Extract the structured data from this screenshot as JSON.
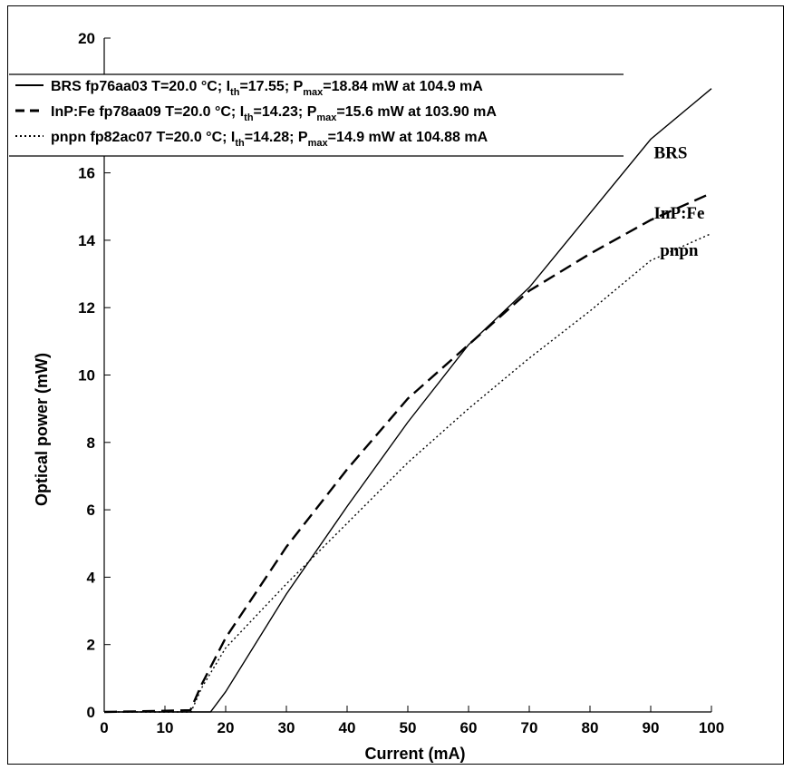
{
  "chart_data": {
    "type": "line",
    "xlabel": "Current (mA)",
    "ylabel": "Optical power (mW)",
    "xlim": [
      0,
      100
    ],
    "ylim": [
      0,
      20
    ],
    "xticks": [
      "0",
      "10",
      "20",
      "30",
      "40",
      "50",
      "60",
      "70",
      "80",
      "90",
      "100"
    ],
    "yticks": [
      "0",
      "2",
      "4",
      "6",
      "8",
      "10",
      "12",
      "14",
      "16",
      "20"
    ],
    "grid": false,
    "legend_position": "top",
    "legend": [
      {
        "pre": "BRS fp76aa03 T=20.0 °C; I",
        "sub1": "th",
        "mid": "=17.55; P",
        "sub2": "max",
        "post": "=18.84 mW at 104.9 mA"
      },
      {
        "pre": "InP:Fe fp78aa09 T=20.0 °C; I",
        "sub1": "th",
        "mid": "=14.23; P",
        "sub2": "max",
        "post": "=15.6 mW at 103.90 mA"
      },
      {
        "pre": "pnpn fp82ac07 T=20.0 °C; I",
        "sub1": "th",
        "mid": "=14.28; P",
        "sub2": "max",
        "post": "=14.9 mW at 104.88 mA"
      }
    ],
    "series": [
      {
        "name": "BRS",
        "style": "solid",
        "points": [
          [
            0,
            0
          ],
          [
            17.5,
            0
          ],
          [
            20,
            0.6
          ],
          [
            30,
            3.5
          ],
          [
            40,
            6.1
          ],
          [
            50,
            8.6
          ],
          [
            60,
            10.9
          ],
          [
            70,
            12.6
          ],
          [
            80,
            14.8
          ],
          [
            90,
            17.0
          ],
          [
            100,
            18.5
          ]
        ]
      },
      {
        "name": "InP:Fe",
        "style": "dashed",
        "points": [
          [
            0,
            0
          ],
          [
            6,
            0.02
          ],
          [
            14.2,
            0.05
          ],
          [
            16,
            0.8
          ],
          [
            20,
            2.2
          ],
          [
            30,
            4.9
          ],
          [
            40,
            7.2
          ],
          [
            50,
            9.3
          ],
          [
            60,
            10.9
          ],
          [
            70,
            12.5
          ],
          [
            80,
            13.6
          ],
          [
            90,
            14.6
          ],
          [
            100,
            15.4
          ]
        ]
      },
      {
        "name": "pnpn",
        "style": "dotted",
        "points": [
          [
            0,
            0
          ],
          [
            14.3,
            0
          ],
          [
            16,
            0.7
          ],
          [
            20,
            1.9
          ],
          [
            30,
            3.8
          ],
          [
            40,
            5.6
          ],
          [
            50,
            7.4
          ],
          [
            60,
            9.0
          ],
          [
            70,
            10.5
          ],
          [
            80,
            11.9
          ],
          [
            90,
            13.4
          ],
          [
            100,
            14.2
          ]
        ]
      }
    ],
    "annotations": [
      {
        "text": "BRS",
        "x": 95,
        "y": 16.6
      },
      {
        "text": "InP:Fe",
        "x": 95,
        "y": 14.8
      },
      {
        "text": "pnpn",
        "x": 96,
        "y": 13.7
      }
    ]
  }
}
